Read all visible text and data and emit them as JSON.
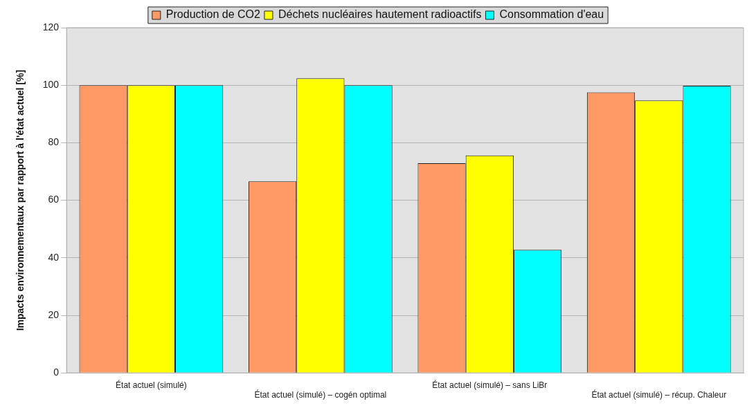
{
  "chart_data": {
    "type": "bar",
    "ylabel": "Impacts environnementaux par rapport à l'état actuel [%]",
    "categories": [
      "État actuel (simulé)",
      "État actuel (simulé) – cogén optimal",
      "État actuel (simulé) – sans LiBr",
      "État actuel (simulé) – récup. Chaleur"
    ],
    "series": [
      {
        "name": "Production de CO2",
        "color": "#ff9966",
        "values": [
          100,
          66.6,
          72.9,
          97.5
        ]
      },
      {
        "name": "Déchets nucléaires hautement radioactifs",
        "color": "#ffff00",
        "values": [
          100,
          102.4,
          75.6,
          94.7
        ]
      },
      {
        "name": "Consommation d'eau",
        "color": "#00ffff",
        "values": [
          100,
          100,
          42.8,
          99.8
        ]
      }
    ],
    "ylim": [
      0,
      120
    ],
    "yticks": [
      0,
      20,
      40,
      60,
      80,
      100,
      120
    ],
    "grid": "y",
    "legend": "top"
  }
}
